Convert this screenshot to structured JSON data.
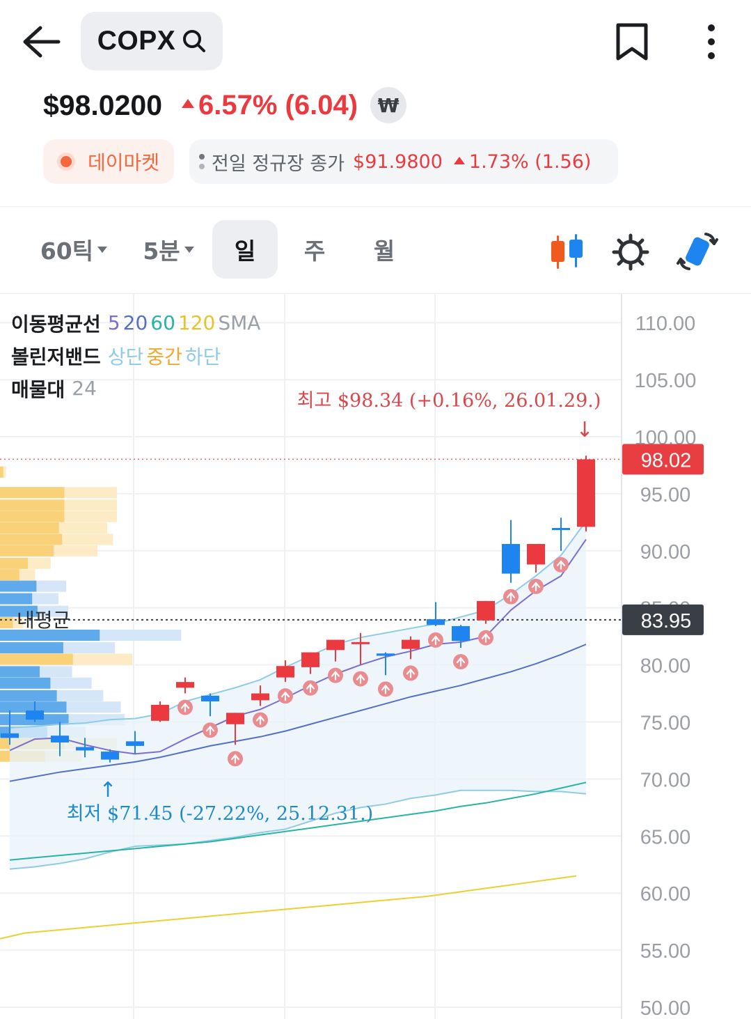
{
  "header": {
    "ticker": "COPX",
    "icons": [
      "back-arrow-icon",
      "search-icon",
      "bookmark-icon",
      "more-vertical-icon"
    ]
  },
  "quote": {
    "price": "$98.0200",
    "change": "6.57% (6.04)",
    "currency_button": "₩",
    "session_label": "데이마켓",
    "prev_close_label": "전일 정규장 종가",
    "prev_close_price": "$91.9800",
    "prev_close_change": "1.73% (1.56)"
  },
  "colors": {
    "up": "#eb3a3f",
    "down": "#1d84f0",
    "session": "#f3663f",
    "ma5": "#7a6fd0",
    "ma20": "#5470c6",
    "ma60": "#27b4a4",
    "ma120": "#ead030",
    "bollinger_band": "#8ecbe6",
    "volume_profile_blue": "#4a9fe8",
    "volume_profile_yellow": "#f7cc6a"
  },
  "periods": {
    "tabs": [
      {
        "label": "60틱",
        "dropdown": true
      },
      {
        "label": "5분",
        "dropdown": true
      },
      {
        "label": "일",
        "active": true
      },
      {
        "label": "주"
      },
      {
        "label": "월"
      }
    ],
    "tools": [
      "candle-type-icon",
      "settings-gear-icon",
      "rotate-screen-icon"
    ]
  },
  "legend": {
    "ma_label": "이동평균선",
    "ma_periods": [
      "5",
      "20",
      "60",
      "120"
    ],
    "ma_suffix": "SMA",
    "bb_label": "볼린저밴드",
    "bb_parts": [
      "상단",
      "중간",
      "하단"
    ],
    "vp_label": "매물대",
    "vp_value": "24"
  },
  "chart_data": {
    "type": "candlestick",
    "y_ticks": [
      "110.00",
      "105.00",
      "100.00",
      "95.00",
      "90.00",
      "85.00",
      "80.00",
      "75.00",
      "70.00",
      "65.00",
      "60.00",
      "55.00",
      "50.00"
    ],
    "ylim": [
      50,
      110
    ],
    "current_price_label": "98.02",
    "avg_price_label": "83.95",
    "avg_line_label": "내평균",
    "high_annotation": "최고 $98.34 (+0.16%, 26.01.29.)",
    "low_annotation": "최저 $71.45 (-27.22%, 25.12.31.)",
    "arrow_down": "↓",
    "arrow_up": "↑",
    "candles": [
      {
        "o": 74.0,
        "h": 76.0,
        "l": 73.0,
        "c": 73.6
      },
      {
        "o": 76.0,
        "h": 76.8,
        "l": 75.0,
        "c": 75.2
      },
      {
        "o": 73.8,
        "h": 75.0,
        "l": 72.0,
        "c": 73.2
      },
      {
        "o": 72.8,
        "h": 73.6,
        "l": 71.9,
        "c": 72.5
      },
      {
        "o": 72.4,
        "h": 72.6,
        "l": 71.45,
        "c": 71.7
      },
      {
        "o": 73.3,
        "h": 74.2,
        "l": 72.2,
        "c": 72.9
      },
      {
        "o": 75.1,
        "h": 76.8,
        "l": 75.0,
        "c": 76.5
      },
      {
        "o": 78.0,
        "h": 78.9,
        "l": 77.5,
        "c": 78.5
      },
      {
        "o": 77.3,
        "h": 77.5,
        "l": 75.5,
        "c": 76.8
      },
      {
        "o": 74.8,
        "h": 75.8,
        "l": 73.0,
        "c": 75.8
      },
      {
        "o": 76.9,
        "h": 78.2,
        "l": 76.4,
        "c": 77.5
      },
      {
        "o": 78.9,
        "h": 80.4,
        "l": 78.5,
        "c": 79.9
      },
      {
        "o": 79.8,
        "h": 80.9,
        "l": 79.2,
        "c": 81.1
      },
      {
        "o": 81.3,
        "h": 82.0,
        "l": 80.3,
        "c": 82.2
      },
      {
        "o": 82.0,
        "h": 82.8,
        "l": 80.0,
        "c": 82.0
      },
      {
        "o": 81.0,
        "h": 81.1,
        "l": 79.1,
        "c": 80.8
      },
      {
        "o": 81.4,
        "h": 82.5,
        "l": 80.5,
        "c": 82.2
      },
      {
        "o": 84.0,
        "h": 85.5,
        "l": 83.4,
        "c": 83.5
      },
      {
        "o": 83.4,
        "h": 83.5,
        "l": 81.5,
        "c": 82.1
      },
      {
        "o": 83.9,
        "h": 85.6,
        "l": 83.6,
        "c": 85.6
      },
      {
        "o": 90.6,
        "h": 92.7,
        "l": 87.2,
        "c": 88.0
      },
      {
        "o": 88.8,
        "h": 90.6,
        "l": 88.1,
        "c": 90.6
      },
      {
        "o": 92.0,
        "h": 92.9,
        "l": 90.0,
        "c": 91.9
      },
      {
        "o": 92.1,
        "h": 98.34,
        "l": 91.7,
        "c": 98.02
      }
    ],
    "signal_markers_under_candles": [
      7,
      8,
      9,
      10,
      11,
      12,
      13,
      14,
      15,
      16,
      17,
      18,
      19,
      20,
      21,
      22
    ],
    "ma5": [
      72.5,
      73.5,
      73.6,
      73.0,
      72.5,
      72.2,
      72.4,
      73.5,
      74.5,
      75.5,
      76.1,
      77.1,
      78.2,
      79.2,
      80.0,
      80.7,
      81.2,
      81.8,
      82.0,
      82.5,
      84.8,
      86.5,
      87.8,
      91.0
    ],
    "ma20": [
      69.8,
      70.2,
      70.6,
      70.9,
      71.2,
      71.5,
      71.9,
      72.4,
      72.9,
      73.3,
      73.7,
      74.2,
      74.8,
      75.4,
      76.0,
      76.6,
      77.2,
      77.7,
      78.2,
      78.8,
      79.4,
      80.1,
      80.9,
      81.8
    ],
    "ma60": [
      62.9,
      63.1,
      63.3,
      63.5,
      63.7,
      63.9,
      64.1,
      64.3,
      64.5,
      64.8,
      65.1,
      65.4,
      65.7,
      66.0,
      66.3,
      66.6,
      66.9,
      67.2,
      67.6,
      67.9,
      68.3,
      68.7,
      69.2,
      69.7
    ],
    "ma120": [
      56.3,
      56.5,
      56.7,
      56.9,
      57.1,
      57.3,
      57.5,
      57.7,
      57.9,
      58.1,
      58.3,
      58.5,
      58.7,
      58.9,
      59.1,
      59.3,
      59.5,
      59.7,
      60.0,
      60.3,
      60.6,
      60.9,
      61.2,
      61.5
    ],
    "bb_upper": [
      74.5,
      74.6,
      74.8,
      74.9,
      75.2,
      75.3,
      75.7,
      76.8,
      77.4,
      78.0,
      78.7,
      79.8,
      80.8,
      81.8,
      82.4,
      82.8,
      83.2,
      83.6,
      84.2,
      84.8,
      86.2,
      87.8,
      89.6,
      92.6
    ],
    "bb_lower": [
      62.1,
      62.3,
      62.6,
      63.0,
      63.6,
      64.1,
      64.2,
      64.3,
      64.6,
      64.9,
      65.3,
      65.6,
      66.3,
      67.0,
      67.5,
      67.8,
      68.3,
      68.6,
      69.0,
      69.0,
      69.0,
      68.9,
      68.9,
      68.7
    ],
    "volume_profile": [
      {
        "price": 96.9,
        "w": 0.03,
        "tone": "yellow"
      },
      {
        "price": 95.1,
        "w": 0.6,
        "tone": "yellow"
      },
      {
        "price": 94.0,
        "w": 0.6,
        "tone": "yellow"
      },
      {
        "price": 93.0,
        "w": 0.6,
        "tone": "yellow"
      },
      {
        "price": 92.0,
        "w": 0.55,
        "tone": "yellow"
      },
      {
        "price": 91.0,
        "w": 0.58,
        "tone": "yellow"
      },
      {
        "price": 90.0,
        "w": 0.5,
        "tone": "yellow"
      },
      {
        "price": 88.9,
        "w": 0.26,
        "tone": "yellow"
      },
      {
        "price": 87.9,
        "w": 0.18,
        "tone": "yellow"
      },
      {
        "price": 86.9,
        "w": 0.34,
        "tone": "blue"
      },
      {
        "price": 85.8,
        "w": 0.3,
        "tone": "blue"
      },
      {
        "price": 84.7,
        "w": 0.35,
        "tone": "blue"
      },
      {
        "price": 83.7,
        "w": 0.12,
        "tone": "yellow"
      },
      {
        "price": 82.6,
        "w": 0.93,
        "tone": "blue"
      },
      {
        "price": 81.5,
        "w": 0.59,
        "tone": "blue"
      },
      {
        "price": 80.5,
        "w": 0.68,
        "tone": "yellow"
      },
      {
        "price": 79.4,
        "w": 0.37,
        "tone": "blue"
      },
      {
        "price": 78.4,
        "w": 0.47,
        "tone": "blue"
      },
      {
        "price": 77.3,
        "w": 0.53,
        "tone": "blue"
      },
      {
        "price": 76.3,
        "w": 0.62,
        "tone": "blue"
      },
      {
        "price": 75.2,
        "w": 0.64,
        "tone": "blue"
      },
      {
        "price": 74.1,
        "w": 0.44,
        "tone": "blue"
      },
      {
        "price": 73.1,
        "w": 0.6,
        "tone": "yellow"
      },
      {
        "price": 72.0,
        "w": 0.42,
        "tone": "yellow"
      }
    ]
  }
}
